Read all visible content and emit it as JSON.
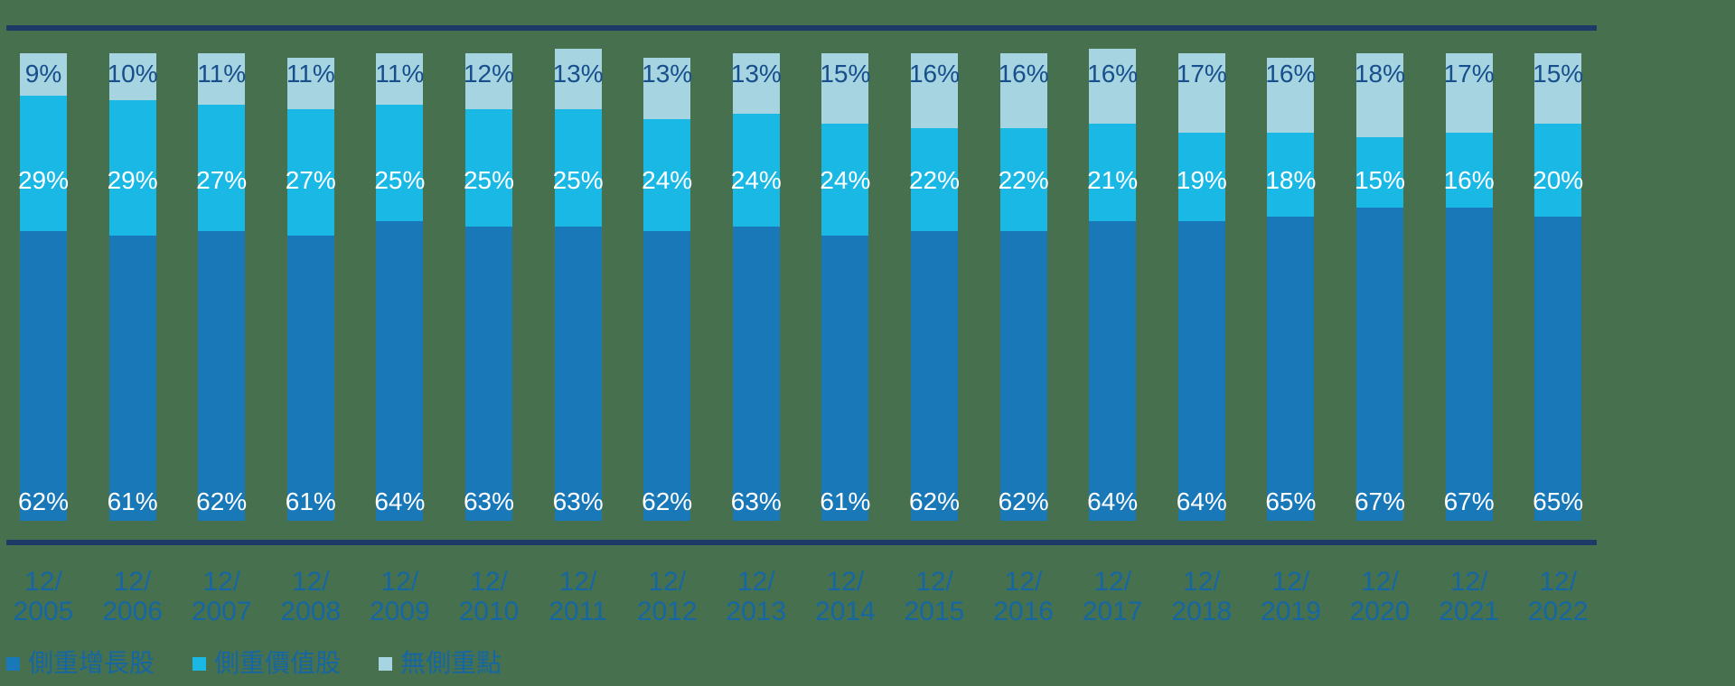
{
  "background_color": "#47714E",
  "rule_color": "#1D3A66",
  "axis_label_color": "#1566A3",
  "legend_text_color": "#1566A3",
  "chart_data": {
    "type": "bar",
    "stacked": true,
    "unit": "%",
    "title": "",
    "xlabel": "",
    "ylabel": "",
    "ylim": [
      0,
      100
    ],
    "grid": false,
    "legend_position": "bottom",
    "x_tick_prefix": "12/",
    "categories": [
      "2005",
      "2006",
      "2007",
      "2008",
      "2009",
      "2010",
      "2011",
      "2012",
      "2013",
      "2014",
      "2015",
      "2016",
      "2017",
      "2018",
      "2019",
      "2020",
      "2021",
      "2022"
    ],
    "x_tick_labels": [
      "12/ 2005",
      "12/ 2006",
      "12/ 2007",
      "12/ 2008",
      "12/ 2009",
      "12/ 2010",
      "12/ 2011",
      "12/ 2012",
      "12/ 2013",
      "12/ 2014",
      "12/ 2015",
      "12/ 2016",
      "12/ 2017",
      "12/ 2018",
      "12/ 2019",
      "12/ 2020",
      "12/ 2021",
      "12/ 2022"
    ],
    "series": [
      {
        "name": "側重增長股",
        "color": "#1878B8",
        "label_color": "#FFFFFF",
        "values": [
          62,
          61,
          62,
          61,
          64,
          63,
          63,
          62,
          63,
          61,
          62,
          62,
          64,
          64,
          65,
          67,
          67,
          65
        ]
      },
      {
        "name": "側重價值股",
        "color": "#1AB9E5",
        "label_color": "#FFFFFF",
        "values": [
          29,
          29,
          27,
          27,
          25,
          25,
          25,
          24,
          24,
          24,
          22,
          22,
          21,
          19,
          18,
          15,
          16,
          20
        ]
      },
      {
        "name": "無側重點",
        "color": "#A6D4E0",
        "label_color": "#174E8C",
        "values": [
          9,
          10,
          11,
          11,
          11,
          12,
          13,
          13,
          13,
          15,
          16,
          16,
          16,
          17,
          16,
          18,
          17,
          15
        ]
      }
    ]
  }
}
